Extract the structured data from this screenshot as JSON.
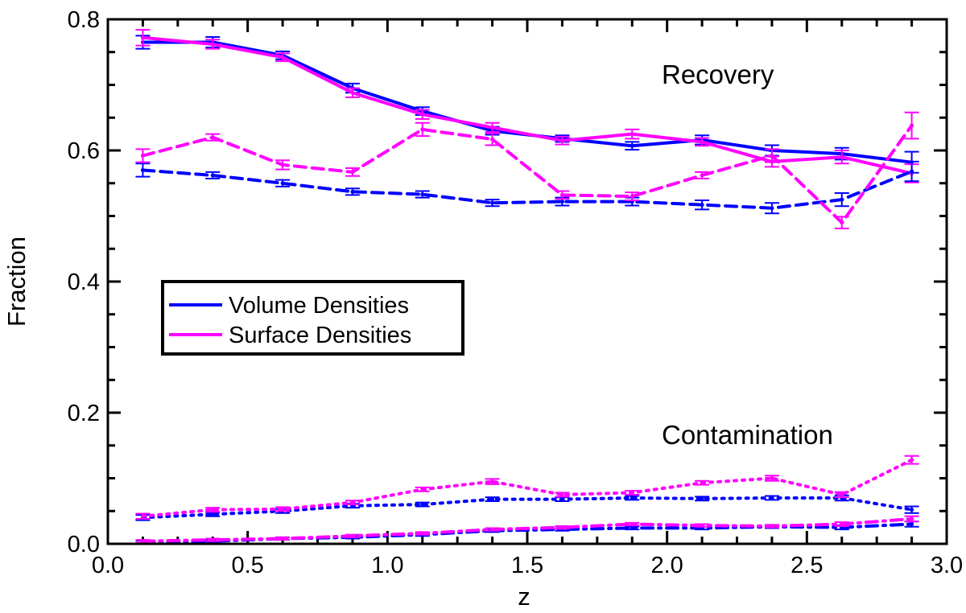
{
  "chart_data": {
    "type": "line",
    "title": "",
    "xlabel": "z",
    "ylabel": "Fraction",
    "xlim": [
      0.0,
      3.0
    ],
    "ylim": [
      0.0,
      0.8
    ],
    "xticks": [
      "0.0",
      "0.5",
      "1.0",
      "1.5",
      "2.0",
      "2.5",
      "3.0"
    ],
    "yticks": [
      "0.0",
      "0.2",
      "0.4",
      "0.6",
      "0.8"
    ],
    "annotations": [
      "Recovery",
      "Contamination"
    ],
    "legend": {
      "placement": "center-left",
      "entries": [
        {
          "label": "Volume Densities",
          "color": "#0000ff"
        },
        {
          "label": "Surface Densities",
          "color": "#ff00ff"
        }
      ]
    },
    "x": [
      0.125,
      0.375,
      0.625,
      0.875,
      1.125,
      1.375,
      1.625,
      1.875,
      2.125,
      2.375,
      2.625,
      2.875
    ],
    "series": [
      {
        "name": "Volume Densities - recovery",
        "color": "#0000ff",
        "style": "solid",
        "values": [
          0.765,
          0.765,
          0.745,
          0.695,
          0.66,
          0.63,
          0.618,
          0.607,
          0.616,
          0.6,
          0.595,
          0.582
        ],
        "errors": [
          0.01,
          0.008,
          0.006,
          0.007,
          0.006,
          0.006,
          0.005,
          0.006,
          0.007,
          0.008,
          0.009,
          0.016
        ]
      },
      {
        "name": "Surface Densities - recovery",
        "color": "#ff00ff",
        "style": "solid",
        "values": [
          0.772,
          0.762,
          0.742,
          0.688,
          0.655,
          0.635,
          0.615,
          0.625,
          0.613,
          0.583,
          0.59,
          0.565
        ],
        "errors": [
          0.012,
          0.007,
          0.006,
          0.007,
          0.007,
          0.007,
          0.006,
          0.007,
          0.006,
          0.008,
          0.01,
          0.014
        ]
      },
      {
        "name": "Volume Densities - best recovery",
        "color": "#0000ff",
        "style": "dashed",
        "values": [
          0.57,
          0.562,
          0.55,
          0.537,
          0.533,
          0.52,
          0.522,
          0.522,
          0.517,
          0.512,
          0.525,
          0.568
        ],
        "errors": [
          0.01,
          0.005,
          0.005,
          0.005,
          0.005,
          0.005,
          0.006,
          0.006,
          0.007,
          0.008,
          0.01,
          0.015
        ]
      },
      {
        "name": "Surface Densities - best recovery",
        "color": "#ff00ff",
        "style": "dashed",
        "values": [
          0.592,
          0.62,
          0.578,
          0.567,
          0.632,
          0.617,
          0.532,
          0.53,
          0.562,
          0.592,
          0.49,
          0.638
        ],
        "errors": [
          0.01,
          0.005,
          0.007,
          0.006,
          0.01,
          0.009,
          0.006,
          0.006,
          0.005,
          0.01,
          0.009,
          0.02
        ]
      },
      {
        "name": "Volume Densities - contamination",
        "color": "#0000ff",
        "style": "dotted",
        "values": [
          0.04,
          0.045,
          0.05,
          0.058,
          0.06,
          0.068,
          0.068,
          0.07,
          0.069,
          0.07,
          0.07,
          0.052
        ],
        "errors": [
          0.004,
          0.003,
          0.003,
          0.003,
          0.003,
          0.003,
          0.003,
          0.003,
          0.003,
          0.003,
          0.004,
          0.005
        ]
      },
      {
        "name": "Surface Densities - contamination",
        "color": "#ff00ff",
        "style": "dotted",
        "values": [
          0.042,
          0.052,
          0.053,
          0.063,
          0.083,
          0.095,
          0.075,
          0.078,
          0.093,
          0.1,
          0.075,
          0.128
        ],
        "errors": [
          0.004,
          0.003,
          0.003,
          0.003,
          0.003,
          0.004,
          0.003,
          0.003,
          0.003,
          0.004,
          0.004,
          0.006
        ]
      },
      {
        "name": "Volume Densities - contamination 2",
        "color": "#0000ff",
        "style": "dashdot",
        "values": [
          0.003,
          0.004,
          0.008,
          0.01,
          0.014,
          0.02,
          0.022,
          0.024,
          0.024,
          0.026,
          0.025,
          0.03
        ],
        "errors": [
          0.002,
          0.002,
          0.002,
          0.002,
          0.002,
          0.002,
          0.002,
          0.002,
          0.002,
          0.002,
          0.003,
          0.004
        ]
      },
      {
        "name": "Surface Densities - contamination 2",
        "color": "#ff00ff",
        "style": "dashdot",
        "values": [
          0.004,
          0.006,
          0.008,
          0.012,
          0.016,
          0.022,
          0.025,
          0.03,
          0.028,
          0.027,
          0.03,
          0.038
        ],
        "errors": [
          0.002,
          0.002,
          0.002,
          0.002,
          0.002,
          0.002,
          0.002,
          0.002,
          0.002,
          0.002,
          0.003,
          0.004
        ]
      }
    ]
  }
}
